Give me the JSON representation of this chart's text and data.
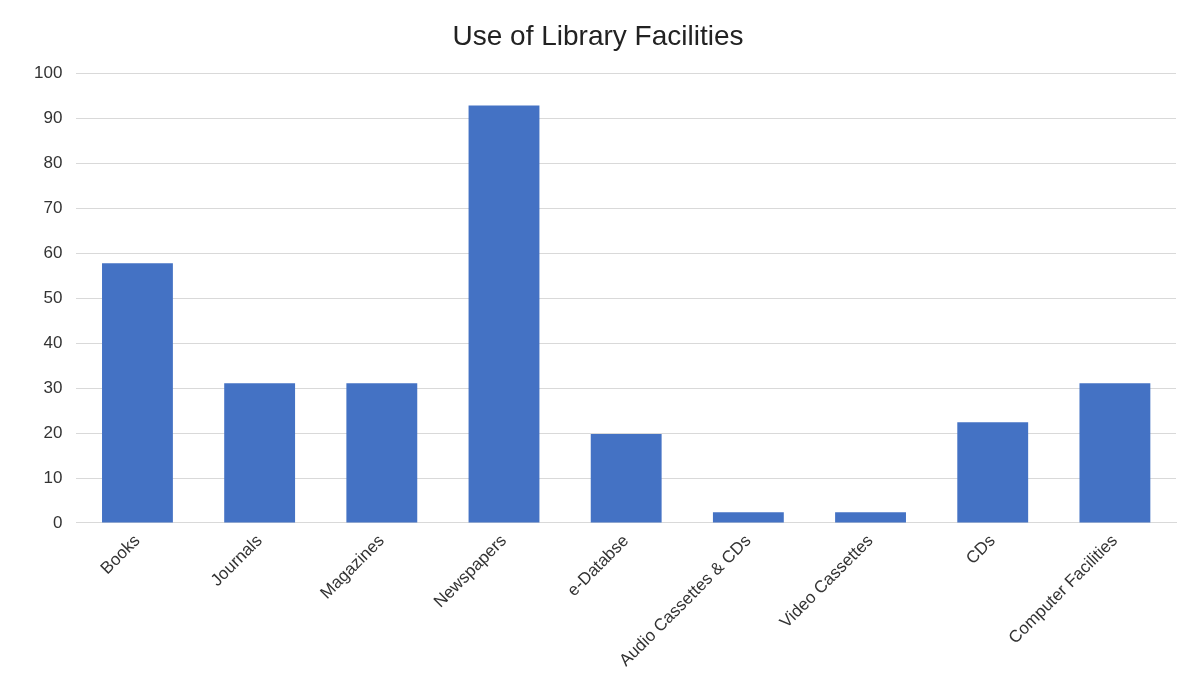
{
  "chart_data": {
    "type": "bar",
    "title": "Use of Library Facilities",
    "categories": [
      "Books",
      "Journals",
      "Magazines",
      "Newspapers",
      "e-Databse",
      "Audio Cassettes & CDs",
      "Video Cassettes",
      "CDs",
      "Computer Facilities"
    ],
    "values": [
      57.8,
      31.1,
      31.1,
      92.9,
      19.8,
      2.4,
      2.4,
      22.4,
      31.1
    ],
    "color": "#4472c4",
    "ylim": [
      0,
      100
    ],
    "yticks": [
      0,
      10,
      20,
      30,
      40,
      50,
      60,
      70,
      80,
      90,
      100
    ],
    "grid": "y"
  }
}
